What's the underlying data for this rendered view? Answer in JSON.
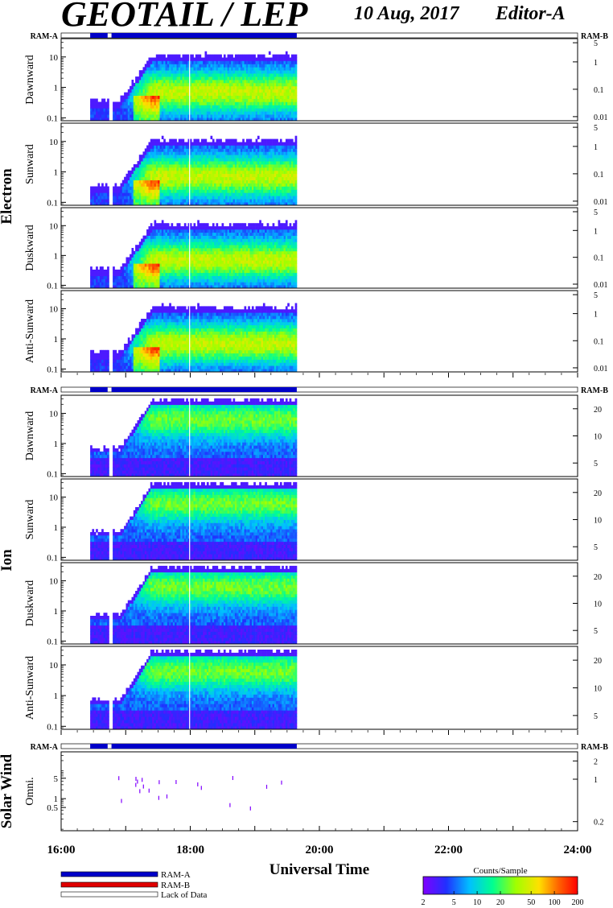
{
  "header": {
    "title": "GEOTAIL / LEP",
    "date": "10 Aug, 2017",
    "editor": "Editor-A"
  },
  "labels": {
    "ram_a": "RAM-A",
    "ram_b": "RAM-B",
    "electron": "Electron",
    "ion": "Ion",
    "solar_wind": "Solar Wind",
    "xlabel": "Universal Time",
    "colorbar_title": "Counts/Sample",
    "legend_ram_a": "RAM-A",
    "legend_ram_b": "RAM-B",
    "legend_lack": "Lack of Data"
  },
  "colors": {
    "ram_a": "#0000c8",
    "ram_b": "#e00000",
    "lack": "#ffffff"
  },
  "chart_data": {
    "type": "heatmap",
    "x_ticks": [
      "16:00",
      "18:00",
      "20:00",
      "22:00",
      "24:00"
    ],
    "x_range_hours": [
      16,
      24
    ],
    "data_coverage_hours": [
      16.45,
      19.65
    ],
    "data_gaps_hours": [
      [
        16.72,
        16.78
      ]
    ],
    "colorbar": {
      "ticks": [
        "2",
        "5",
        "10",
        "20",
        "50",
        "100",
        "200"
      ],
      "range": [
        2,
        200
      ],
      "scale": "log"
    },
    "groups": [
      {
        "name": "Electron",
        "right_ticks": [
          "5",
          "1",
          "0.1",
          "0.01"
        ],
        "right_vals": [
          5,
          1,
          0.1,
          0.01
        ],
        "panels": [
          {
            "name": "Dawnward",
            "left_ticks": [
              "10",
              "1",
              "0.1"
            ]
          },
          {
            "name": "Sunward",
            "left_ticks": [
              "10",
              "1",
              "0.1"
            ]
          },
          {
            "name": "Duskward",
            "left_ticks": [
              "10",
              "1",
              "0.1"
            ]
          },
          {
            "name": "Anti-Sunward",
            "left_ticks": [
              "10",
              "1",
              "0.1"
            ]
          }
        ]
      },
      {
        "name": "Ion",
        "right_ticks": [
          "20",
          "10",
          "5"
        ],
        "right_vals": [
          20,
          10,
          5
        ],
        "panels": [
          {
            "name": "Dawnward",
            "left_ticks": [
              "10",
              "1",
              "0.1"
            ]
          },
          {
            "name": "Sunward",
            "left_ticks": [
              "10",
              "1",
              "0.1"
            ]
          },
          {
            "name": "Duskward",
            "left_ticks": [
              "10",
              "1",
              "0.1"
            ]
          },
          {
            "name": "Anti-Sunward",
            "left_ticks": [
              "10",
              "1",
              "0.1"
            ]
          }
        ]
      },
      {
        "name": "Solar Wind",
        "right_ticks": [
          "2",
          "1",
          "0.2"
        ],
        "right_vals": [
          2,
          1,
          0.2
        ],
        "panels": [
          {
            "name": "Omni.",
            "left_ticks": [
              "5",
              "1",
              "0.5"
            ]
          }
        ]
      }
    ],
    "ylim": [
      0.08,
      40
    ],
    "yscale": "log"
  }
}
